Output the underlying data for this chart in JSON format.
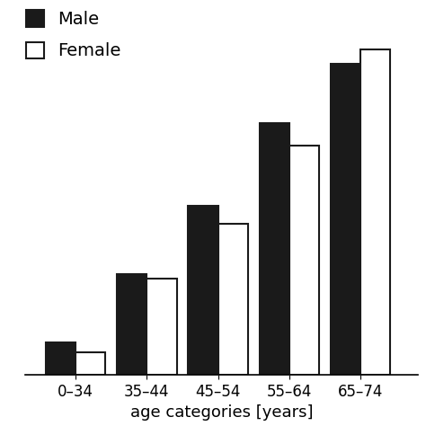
{
  "categories": [
    "0–34",
    "35–44",
    "45–54",
    "55–64",
    "65–74"
  ],
  "male_values": [
    7,
    22,
    37,
    55,
    68
  ],
  "female_values": [
    5,
    21,
    33,
    50,
    71
  ],
  "bar_color_male": "#1a1a1a",
  "bar_color_female": "#ffffff",
  "bar_edgecolor": "#1a1a1a",
  "xlabel": "age categories [years]",
  "ylim": [
    0,
    80
  ],
  "legend_labels": [
    "Male",
    "Female"
  ],
  "bar_width": 0.42,
  "background_color": "#ffffff",
  "xlabel_fontsize": 13,
  "tick_fontsize": 12,
  "legend_fontsize": 14,
  "bar_linewidth": 1.5
}
